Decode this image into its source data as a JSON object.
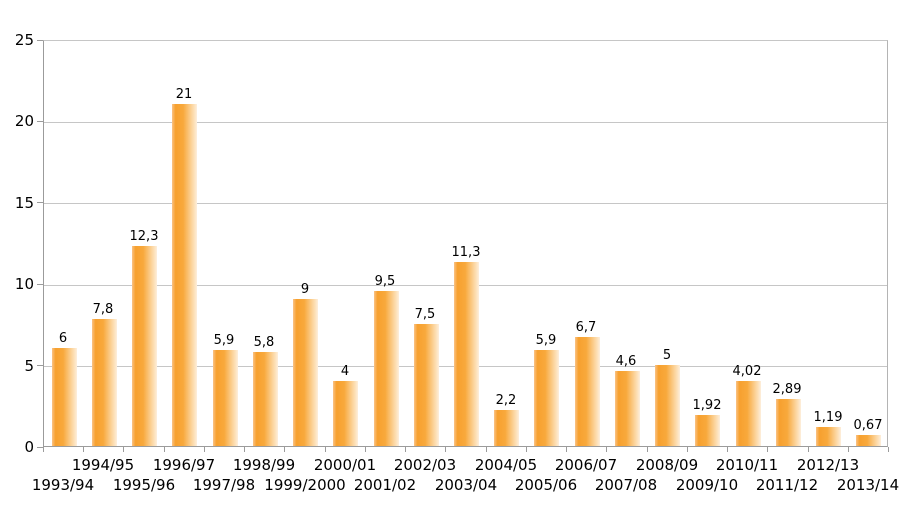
{
  "chart_data": {
    "type": "bar",
    "title": "",
    "xlabel": "",
    "ylabel": "",
    "categories": [
      "1993/94",
      "1994/95",
      "1995/96",
      "1996/97",
      "1997/98",
      "1998/99",
      "1999/2000",
      "2000/01",
      "2001/02",
      "2002/03",
      "2003/04",
      "2004/05",
      "2005/06",
      "2006/07",
      "2007/08",
      "2008/09",
      "2009/10",
      "2010/11",
      "2011/12",
      "2012/13",
      "2013/14"
    ],
    "values": [
      6,
      7.8,
      12.3,
      21,
      5.9,
      5.8,
      9,
      4,
      9.5,
      7.5,
      11.3,
      2.2,
      5.9,
      6.7,
      4.6,
      5,
      1.92,
      4.02,
      2.89,
      1.19,
      0.67
    ],
    "value_labels": [
      "6",
      "7,8",
      "12,3",
      "21",
      "5,9",
      "5,8",
      "9",
      "4",
      "9,5",
      "7,5",
      "11,3",
      "2,2",
      "5,9",
      "6,7",
      "4,6",
      "5",
      "1,92",
      "4,02",
      "2,89",
      "1,19",
      "0,67"
    ],
    "ylim": [
      0,
      25
    ],
    "ytick_interval": 5,
    "ytick_labels": [
      "0",
      "5",
      "10",
      "15",
      "20",
      "25"
    ],
    "grid": true,
    "legend": false,
    "decimal_separator": ","
  },
  "colors": {
    "bar_main": "#F7A02E",
    "bar_main2": "#F8A93C",
    "bar_edge_light": "#FAC386",
    "bar_fade_light": "#FDE2BC",
    "bar_fade_lighter": "#FDEEDC",
    "gridline": "#C6C6C6",
    "axis": "#9B9B9B",
    "plot_border": "#B4B4B4",
    "text": "#000000",
    "background": "#FFFFFF"
  }
}
